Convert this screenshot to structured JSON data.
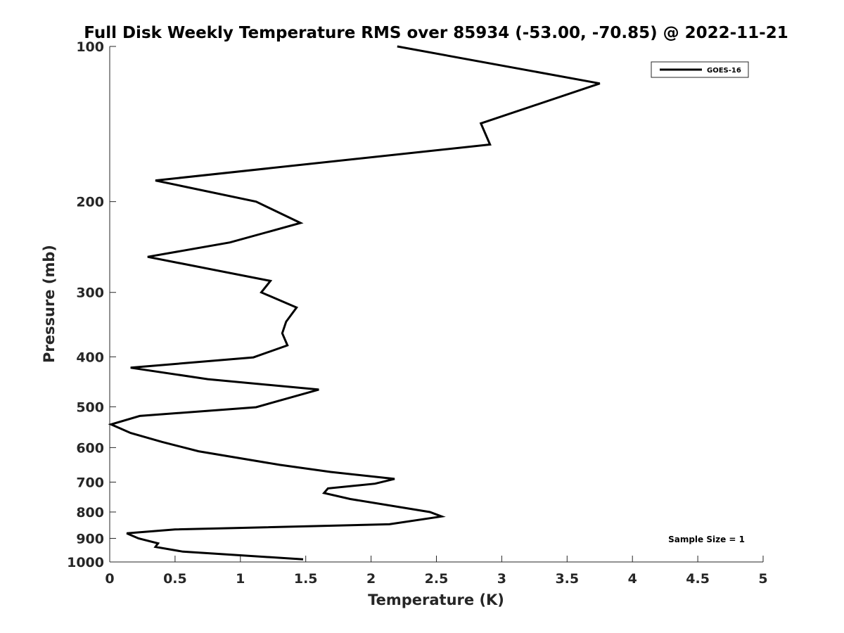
{
  "chart_data": {
    "type": "line",
    "title": "Full Disk Weekly Temperature RMS over 85934 (-53.00, -70.85) @ 2022-11-21",
    "xlabel": "Temperature (K)",
    "ylabel": "Pressure (mb)",
    "xlim": [
      0,
      5
    ],
    "ylim": [
      100,
      1000
    ],
    "y_scale": "log",
    "y_reversed": true,
    "x_ticks": [
      "0",
      "0.5",
      "1",
      "1.5",
      "2",
      "2.5",
      "3",
      "3.5",
      "4",
      "4.5",
      "5"
    ],
    "y_ticks": [
      100,
      200,
      300,
      400,
      500,
      600,
      700,
      800,
      900,
      1000
    ],
    "grid": false,
    "legend": {
      "placement": "top-right",
      "entries": [
        "GOES-16"
      ]
    },
    "annotation": "Sample Size = 1",
    "series": [
      {
        "name": "GOES-16",
        "color": "#000000",
        "points": [
          [
            2.2,
            100
          ],
          [
            3.75,
            118
          ],
          [
            2.84,
            141
          ],
          [
            2.91,
            155
          ],
          [
            0.35,
            182
          ],
          [
            1.12,
            200
          ],
          [
            1.46,
            220
          ],
          [
            0.92,
            240
          ],
          [
            0.29,
            256
          ],
          [
            1.23,
            285
          ],
          [
            1.16,
            300
          ],
          [
            1.43,
            321
          ],
          [
            1.35,
            342
          ],
          [
            1.32,
            360
          ],
          [
            1.36,
            380
          ],
          [
            1.1,
            401
          ],
          [
            0.16,
            420
          ],
          [
            0.75,
            442
          ],
          [
            1.6,
            463
          ],
          [
            1.12,
            501
          ],
          [
            0.23,
            521
          ],
          [
            0.01,
            541
          ],
          [
            0.16,
            562
          ],
          [
            0.4,
            585
          ],
          [
            0.68,
            610
          ],
          [
            1.3,
            648
          ],
          [
            1.69,
            669
          ],
          [
            2.18,
            690
          ],
          [
            2.03,
            705
          ],
          [
            1.67,
            720
          ],
          [
            1.64,
            735
          ],
          [
            1.84,
            755
          ],
          [
            2.45,
            800
          ],
          [
            2.54,
            816
          ],
          [
            2.14,
            845
          ],
          [
            0.5,
            865
          ],
          [
            0.13,
            880
          ],
          [
            0.22,
            900
          ],
          [
            0.37,
            920
          ],
          [
            0.35,
            935
          ],
          [
            0.56,
            955
          ],
          [
            1.48,
            988
          ]
        ]
      }
    ]
  }
}
